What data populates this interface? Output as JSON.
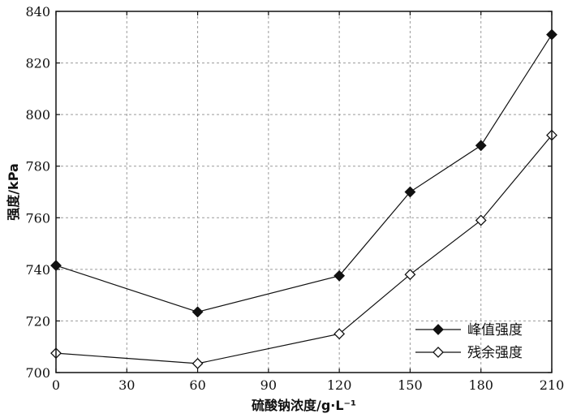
{
  "chart_data": {
    "type": "line",
    "title": "",
    "xlabel": "硫酸钠浓度/g·L⁻¹",
    "ylabel": "强度/kPa",
    "xlim": [
      0,
      210
    ],
    "ylim": [
      700,
      840
    ],
    "x_ticks": [
      0,
      30,
      60,
      90,
      120,
      150,
      180,
      210
    ],
    "y_ticks": [
      700,
      720,
      740,
      760,
      780,
      800,
      820,
      840
    ],
    "grid": true,
    "legend_position": "bottom-right",
    "x": [
      0,
      60,
      120,
      150,
      180,
      210
    ],
    "series": [
      {
        "name": "峰值强度",
        "marker": "filled-diamond",
        "color": "#111111",
        "values": [
          741.5,
          723.5,
          737.5,
          770,
          788,
          831
        ]
      },
      {
        "name": "残余强度",
        "marker": "open-diamond",
        "color": "#111111",
        "values": [
          707.5,
          703.5,
          715,
          738,
          759,
          792
        ]
      }
    ]
  }
}
